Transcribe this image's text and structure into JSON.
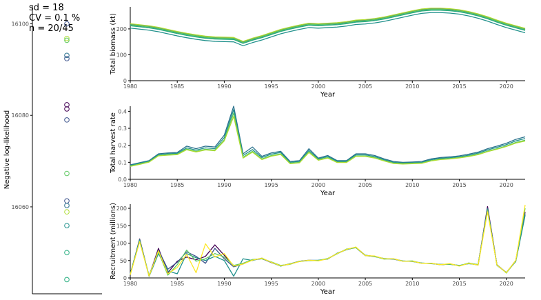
{
  "stats": {
    "sd": "sd = 18",
    "cv": "CV = 0.1 %",
    "n": "n = 20/45"
  },
  "colors": {
    "series": [
      "#440154",
      "#3b528b",
      "#2c728e",
      "#21918c",
      "#28ae80",
      "#5ec962",
      "#addc30",
      "#fde725"
    ],
    "axis": "#000000",
    "tick_text": "#4d4d4d"
  },
  "chart_data": [
    {
      "type": "scatter",
      "ylabel": "Negative log-likelihood",
      "ylim": [
        16041,
        16104
      ],
      "yticks": [
        16060,
        16080,
        16100
      ],
      "points": [
        {
          "y": 16100,
          "color": "#3b528b"
        },
        {
          "y": 16096.8,
          "color": "#addc30"
        },
        {
          "y": 16096.4,
          "color": "#5ec962"
        },
        {
          "y": 16093.1,
          "color": "#2c728e"
        },
        {
          "y": 16092.4,
          "color": "#3b528b"
        },
        {
          "y": 16082.3,
          "color": "#440154"
        },
        {
          "y": 16081.4,
          "color": "#440154"
        },
        {
          "y": 16079,
          "color": "#3b528b"
        },
        {
          "y": 16067.3,
          "color": "#5ec962"
        },
        {
          "y": 16061.3,
          "color": "#3b528b"
        },
        {
          "y": 16060.3,
          "color": "#2c728e"
        },
        {
          "y": 16058.9,
          "color": "#addc30"
        },
        {
          "y": 16055.9,
          "color": "#21918c"
        },
        {
          "y": 16050,
          "color": "#28ae80"
        },
        {
          "y": 16044.1,
          "color": "#28ae80"
        }
      ]
    },
    {
      "type": "line",
      "xlabel": "Year",
      "ylabel": "Total biomass (kt)",
      "xlim": [
        1980,
        2022
      ],
      "ylim": [
        0,
        285
      ],
      "xticks": [
        1980,
        1985,
        1990,
        1995,
        2000,
        2005,
        2010,
        2015,
        2020
      ],
      "yticks": [
        0,
        100,
        200
      ],
      "x": [
        1980,
        1981,
        1982,
        1983,
        1984,
        1985,
        1986,
        1987,
        1988,
        1989,
        1990,
        1991,
        1992,
        1993,
        1994,
        1995,
        1996,
        1997,
        1998,
        1999,
        2000,
        2001,
        2002,
        2003,
        2004,
        2005,
        2006,
        2007,
        2008,
        2009,
        2010,
        2011,
        2012,
        2013,
        2014,
        2015,
        2016,
        2017,
        2018,
        2019,
        2020,
        2021,
        2022
      ],
      "series": [
        {
          "color": "#3b528b",
          "values": [
            218,
            214,
            210,
            204,
            196,
            188,
            181,
            175,
            170,
            167,
            166,
            165,
            150,
            162,
            172,
            184,
            196,
            205,
            213,
            220,
            218,
            220,
            222,
            226,
            232,
            234,
            238,
            244,
            252,
            260,
            268,
            275,
            278,
            278,
            276,
            272,
            265,
            256,
            245,
            232,
            220,
            210,
            200
          ]
        },
        {
          "color": "#2c728e",
          "values": [
            215,
            211,
            207,
            201,
            193,
            185,
            178,
            172,
            167,
            164,
            163,
            162,
            147,
            159,
            169,
            181,
            193,
            202,
            210,
            217,
            215,
            217,
            219,
            223,
            229,
            231,
            235,
            241,
            249,
            257,
            265,
            272,
            275,
            275,
            273,
            269,
            262,
            253,
            242,
            229,
            217,
            207,
            197
          ]
        },
        {
          "color": "#21918c",
          "values": [
            203,
            199,
            195,
            189,
            181,
            173,
            166,
            160,
            155,
            152,
            151,
            150,
            135,
            147,
            157,
            169,
            181,
            190,
            198,
            205,
            203,
            205,
            207,
            211,
            217,
            219,
            223,
            229,
            237,
            245,
            253,
            260,
            263,
            263,
            261,
            257,
            250,
            241,
            230,
            217,
            205,
            195,
            185
          ]
        },
        {
          "color": "#28ae80",
          "values": [
            212,
            208,
            204,
            198,
            190,
            182,
            175,
            169,
            164,
            161,
            160,
            159,
            144,
            156,
            166,
            178,
            190,
            199,
            207,
            214,
            212,
            214,
            216,
            220,
            226,
            228,
            232,
            238,
            246,
            254,
            262,
            269,
            272,
            272,
            270,
            266,
            259,
            250,
            239,
            226,
            214,
            204,
            194
          ]
        },
        {
          "color": "#5ec962",
          "values": [
            216,
            212,
            208,
            202,
            194,
            186,
            179,
            173,
            168,
            165,
            164,
            163,
            148,
            160,
            170,
            182,
            194,
            203,
            211,
            218,
            216,
            218,
            220,
            224,
            230,
            232,
            236,
            242,
            250,
            258,
            266,
            273,
            276,
            276,
            274,
            270,
            263,
            254,
            243,
            230,
            218,
            208,
            198
          ]
        },
        {
          "color": "#addc30",
          "values": [
            220,
            216,
            212,
            206,
            198,
            190,
            183,
            177,
            172,
            169,
            168,
            167,
            152,
            164,
            174,
            186,
            198,
            207,
            215,
            222,
            220,
            222,
            224,
            228,
            234,
            236,
            240,
            246,
            254,
            262,
            270,
            277,
            280,
            280,
            278,
            274,
            267,
            258,
            247,
            234,
            222,
            212,
            202
          ]
        }
      ]
    },
    {
      "type": "line",
      "xlabel": "Year",
      "ylabel": "Total harvest rate",
      "xlim": [
        1980,
        2022
      ],
      "ylim": [
        0,
        0.43
      ],
      "xticks": [
        1980,
        1985,
        1990,
        1995,
        2000,
        2005,
        2010,
        2015,
        2020
      ],
      "yticks": [
        0.0,
        0.1,
        0.2,
        0.3,
        0.4
      ],
      "ytick_labels": [
        "0.0",
        "0.1",
        "0.2",
        "0.3",
        "0.4"
      ],
      "x": [
        1980,
        1981,
        1982,
        1983,
        1984,
        1985,
        1986,
        1987,
        1988,
        1989,
        1990,
        1991,
        1992,
        1993,
        1994,
        1995,
        1996,
        1997,
        1998,
        1999,
        2000,
        2001,
        2002,
        2003,
        2004,
        2005,
        2006,
        2007,
        2008,
        2009,
        2010,
        2011,
        2012,
        2013,
        2014,
        2015,
        2016,
        2017,
        2018,
        2019,
        2020,
        2021,
        2022
      ],
      "series": [
        {
          "color": "#2c728e",
          "values": [
            0.085,
            0.098,
            0.11,
            0.15,
            0.155,
            0.158,
            0.195,
            0.18,
            0.195,
            0.19,
            0.26,
            0.43,
            0.15,
            0.19,
            0.135,
            0.155,
            0.165,
            0.105,
            0.11,
            0.18,
            0.125,
            0.14,
            0.11,
            0.11,
            0.15,
            0.15,
            0.14,
            0.12,
            0.105,
            0.1,
            0.102,
            0.105,
            0.12,
            0.128,
            0.132,
            0.138,
            0.148,
            0.16,
            0.18,
            0.195,
            0.212,
            0.235,
            0.25
          ]
        },
        {
          "color": "#21918c",
          "values": [
            0.082,
            0.095,
            0.107,
            0.145,
            0.15,
            0.153,
            0.185,
            0.172,
            0.185,
            0.18,
            0.245,
            0.41,
            0.14,
            0.175,
            0.128,
            0.148,
            0.158,
            0.1,
            0.105,
            0.17,
            0.12,
            0.134,
            0.106,
            0.106,
            0.144,
            0.144,
            0.134,
            0.115,
            0.1,
            0.096,
            0.098,
            0.1,
            0.115,
            0.123,
            0.127,
            0.133,
            0.142,
            0.154,
            0.173,
            0.188,
            0.204,
            0.226,
            0.24
          ]
        },
        {
          "color": "#5ec962",
          "values": [
            0.078,
            0.09,
            0.103,
            0.14,
            0.145,
            0.148,
            0.178,
            0.165,
            0.177,
            0.172,
            0.232,
            0.39,
            0.13,
            0.165,
            0.12,
            0.14,
            0.15,
            0.095,
            0.1,
            0.162,
            0.115,
            0.128,
            0.101,
            0.101,
            0.138,
            0.138,
            0.128,
            0.11,
            0.095,
            0.092,
            0.094,
            0.096,
            0.11,
            0.118,
            0.122,
            0.128,
            0.137,
            0.148,
            0.166,
            0.18,
            0.196,
            0.217,
            0.23
          ]
        },
        {
          "color": "#addc30",
          "values": [
            0.076,
            0.088,
            0.101,
            0.138,
            0.142,
            0.145,
            0.174,
            0.161,
            0.173,
            0.168,
            0.226,
            0.37,
            0.125,
            0.16,
            0.116,
            0.136,
            0.146,
            0.092,
            0.097,
            0.158,
            0.112,
            0.125,
            0.099,
            0.099,
            0.135,
            0.135,
            0.125,
            0.108,
            0.093,
            0.09,
            0.092,
            0.094,
            0.108,
            0.116,
            0.12,
            0.126,
            0.134,
            0.145,
            0.163,
            0.177,
            0.193,
            0.213,
            0.225
          ]
        }
      ]
    },
    {
      "type": "line",
      "xlabel": "Year",
      "ylabel": "Recruitment (millions)",
      "xlim": [
        1980,
        2022
      ],
      "ylim": [
        0,
        212
      ],
      "xticks": [
        1980,
        1985,
        1990,
        1995,
        2000,
        2005,
        2010,
        2015,
        2020
      ],
      "yticks": [
        0,
        50,
        100,
        150,
        200
      ],
      "x": [
        1980,
        1981,
        1982,
        1983,
        1984,
        1985,
        1986,
        1987,
        1988,
        1989,
        1990,
        1991,
        1992,
        1993,
        1994,
        1995,
        1996,
        1997,
        1998,
        1999,
        2000,
        2001,
        2002,
        2003,
        2004,
        2005,
        2006,
        2007,
        2008,
        2009,
        2010,
        2011,
        2012,
        2013,
        2014,
        2015,
        2016,
        2017,
        2018,
        2019,
        2020,
        2021,
        2022
      ],
      "series": [
        {
          "color": "#440154",
          "values": [
            10,
            112,
            5,
            85,
            15,
            48,
            60,
            52,
            62,
            95,
            65,
            35,
            42,
            52,
            55,
            45,
            35,
            40,
            48,
            50,
            50,
            55,
            70,
            82,
            88,
            65,
            62,
            55,
            55,
            48,
            48,
            42,
            42,
            38,
            40,
            35,
            42,
            38,
            205,
            38,
            15,
            50,
            190
          ]
        },
        {
          "color": "#3b528b",
          "values": [
            12,
            108,
            6,
            80,
            25,
            45,
            75,
            62,
            42,
            85,
            55,
            32,
            40,
            52,
            56,
            44,
            35,
            40,
            48,
            51,
            50,
            55,
            70,
            82,
            87,
            64,
            62,
            55,
            54,
            48,
            48,
            42,
            42,
            38,
            40,
            35,
            42,
            37,
            200,
            37,
            15,
            48,
            185
          ]
        },
        {
          "color": "#21918c",
          "values": [
            11,
            110,
            4,
            70,
            20,
            12,
            70,
            58,
            50,
            62,
            50,
            5,
            55,
            50,
            57,
            45,
            34,
            41,
            47,
            50,
            51,
            54,
            71,
            81,
            88,
            65,
            61,
            56,
            54,
            49,
            47,
            43,
            41,
            39,
            39,
            36,
            41,
            38,
            198,
            36,
            16,
            47,
            180
          ]
        },
        {
          "color": "#5ec962",
          "values": [
            10,
            106,
            7,
            75,
            8,
            38,
            80,
            48,
            55,
            70,
            60,
            36,
            42,
            53,
            55,
            46,
            36,
            39,
            48,
            50,
            50,
            56,
            69,
            83,
            87,
            65,
            62,
            54,
            55,
            48,
            49,
            42,
            42,
            38,
            40,
            35,
            43,
            38,
            195,
            38,
            14,
            49,
            200
          ]
        },
        {
          "color": "#fde725",
          "values": [
            9,
            104,
            5,
            78,
            12,
            30,
            68,
            15,
            98,
            60,
            70,
            34,
            40,
            51,
            57,
            45,
            35,
            40,
            47,
            51,
            49,
            55,
            70,
            82,
            89,
            64,
            63,
            55,
            55,
            48,
            48,
            42,
            42,
            38,
            41,
            34,
            42,
            37,
            190,
            37,
            15,
            50,
            210
          ]
        }
      ]
    }
  ]
}
